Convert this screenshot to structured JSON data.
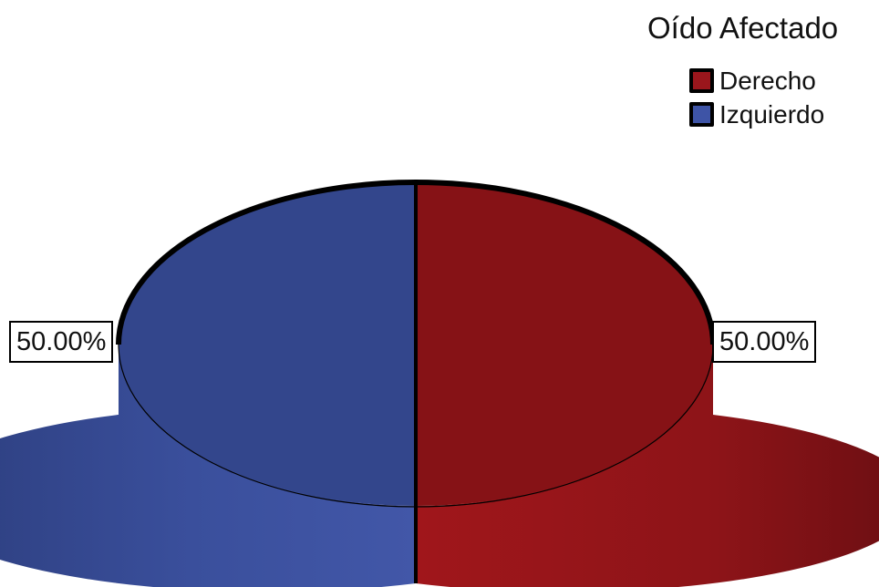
{
  "chart_data": {
    "type": "pie",
    "legend_title": "Oído Afectado",
    "legend_placement": "top-right",
    "slices": [
      {
        "label": "Derecho",
        "percent": 50.0,
        "display": "50.00%",
        "color": "#861216"
      },
      {
        "label": "Izquierdo",
        "percent": 50.0,
        "display": "50.00%",
        "color": "#33468c"
      }
    ],
    "style": "3d"
  }
}
